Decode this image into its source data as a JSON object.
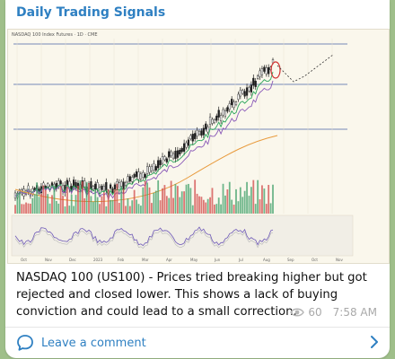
{
  "channel": {
    "title": "Daily Trading Signals"
  },
  "post": {
    "text": "NASDAQ 100 (US100) - Prices tried breaking higher but got rejected and closed lower. This shows a lack of buying conviction and could lead to a small correction.",
    "views": "60",
    "time": "7:58 AM"
  },
  "comment_bar": {
    "label": "Leave a comment"
  },
  "chart": {
    "header": "NASDAQ 100 Index Futures · 1D · CME",
    "x_ticks": [
      "Oct",
      "Nov",
      "Dec",
      "2023",
      "Feb",
      "Mar",
      "Apr",
      "May",
      "Jun",
      "Jul",
      "Aug",
      "Sep",
      "Oct",
      "Nov"
    ]
  },
  "colors": {
    "accent": "#2f80c2",
    "up": "#1f1f1f",
    "down": "#1f1f1f",
    "annotation": "#d03030",
    "volume_up": "#3fa06a",
    "volume_down": "#d24a4a"
  }
}
